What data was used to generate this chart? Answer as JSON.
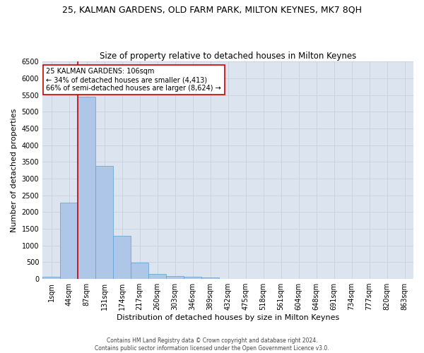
{
  "title": "25, KALMAN GARDENS, OLD FARM PARK, MILTON KEYNES, MK7 8QH",
  "subtitle": "Size of property relative to detached houses in Milton Keynes",
  "xlabel": "Distribution of detached houses by size in Milton Keynes",
  "ylabel": "Number of detached properties",
  "footer_line1": "Contains HM Land Registry data © Crown copyright and database right 2024.",
  "footer_line2": "Contains public sector information licensed under the Open Government Licence v3.0.",
  "categories": [
    "1sqm",
    "44sqm",
    "87sqm",
    "131sqm",
    "174sqm",
    "217sqm",
    "260sqm",
    "303sqm",
    "346sqm",
    "389sqm",
    "432sqm",
    "475sqm",
    "518sqm",
    "561sqm",
    "604sqm",
    "648sqm",
    "691sqm",
    "734sqm",
    "777sqm",
    "820sqm",
    "863sqm"
  ],
  "values": [
    70,
    2280,
    5450,
    3380,
    1290,
    480,
    160,
    80,
    60,
    40,
    10,
    10,
    10,
    0,
    0,
    0,
    0,
    0,
    0,
    0,
    0
  ],
  "bar_color": "#aec6e8",
  "bar_edge_color": "#5a9fd4",
  "property_bin_index": 2,
  "annotation_text": "25 KALMAN GARDENS: 106sqm\n← 34% of detached houses are smaller (4,413)\n66% of semi-detached houses are larger (8,624) →",
  "vline_color": "#cc0000",
  "annotation_box_edge_color": "#cc0000",
  "annotation_box_face_color": "#ffffff",
  "ylim_max": 6500,
  "yticks": [
    0,
    500,
    1000,
    1500,
    2000,
    2500,
    3000,
    3500,
    4000,
    4500,
    5000,
    5500,
    6000,
    6500
  ],
  "grid_color": "#c8d0dc",
  "bg_color": "#dce4f0",
  "title_fontsize": 9,
  "subtitle_fontsize": 8.5,
  "xlabel_fontsize": 8,
  "ylabel_fontsize": 8,
  "tick_fontsize": 7,
  "annotation_fontsize": 7,
  "footer_fontsize": 5.5
}
